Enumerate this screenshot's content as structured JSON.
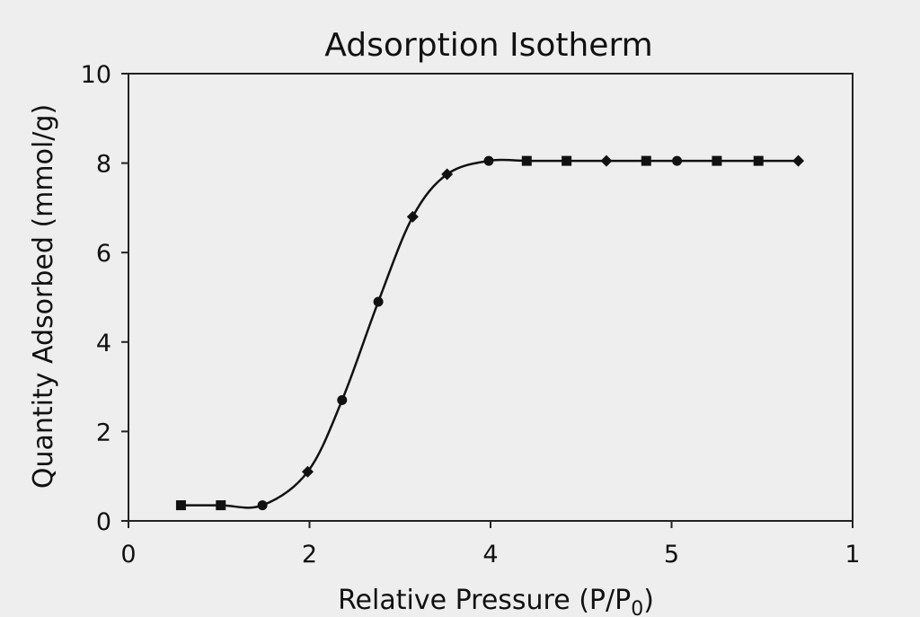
{
  "chart_data": {
    "type": "line",
    "title": "Adsorption Isotherm",
    "xlabel": "Relative Pressure (P/P",
    "xlabel_subscript": "0",
    "xlabel_suffix": ")",
    "ylabel": "Quantity Adsorbed (mmol/g)",
    "x_ticks": [
      {
        "pos": 0,
        "label": "0"
      },
      {
        "pos": 1,
        "label": "2"
      },
      {
        "pos": 2,
        "label": "4"
      },
      {
        "pos": 3,
        "label": "5"
      },
      {
        "pos": 4,
        "label": "1"
      }
    ],
    "y_ticks": [
      {
        "value": 0,
        "label": "0"
      },
      {
        "value": 2,
        "label": "2"
      },
      {
        "value": 4,
        "label": "4"
      },
      {
        "value": 6,
        "label": "6"
      },
      {
        "value": 8,
        "label": "8"
      },
      {
        "value": 10,
        "label": "10"
      }
    ],
    "xlim": [
      0,
      4
    ],
    "ylim": [
      0,
      10
    ],
    "grid": false,
    "line_color": "#111111",
    "series": [
      {
        "points": [
          {
            "x": 0.29,
            "y": 0.35,
            "marker": "square"
          },
          {
            "x": 0.51,
            "y": 0.35,
            "marker": "square"
          },
          {
            "x": 0.74,
            "y": 0.35,
            "marker": "circle"
          },
          {
            "x": 0.99,
            "y": 1.1,
            "marker": "diamond"
          },
          {
            "x": 1.18,
            "y": 2.7,
            "marker": "circle"
          },
          {
            "x": 1.38,
            "y": 4.9,
            "marker": "circle"
          },
          {
            "x": 1.57,
            "y": 6.8,
            "marker": "diamond"
          },
          {
            "x": 1.76,
            "y": 7.75,
            "marker": "diamond"
          },
          {
            "x": 1.99,
            "y": 8.05,
            "marker": "circle"
          },
          {
            "x": 2.2,
            "y": 8.05,
            "marker": "square"
          },
          {
            "x": 2.42,
            "y": 8.05,
            "marker": "square"
          },
          {
            "x": 2.64,
            "y": 8.05,
            "marker": "diamond"
          },
          {
            "x": 2.86,
            "y": 8.05,
            "marker": "square"
          },
          {
            "x": 3.03,
            "y": 8.05,
            "marker": "circle"
          },
          {
            "x": 3.25,
            "y": 8.05,
            "marker": "square"
          },
          {
            "x": 3.48,
            "y": 8.05,
            "marker": "square"
          },
          {
            "x": 3.7,
            "y": 8.05,
            "marker": "diamond"
          }
        ]
      }
    ]
  }
}
